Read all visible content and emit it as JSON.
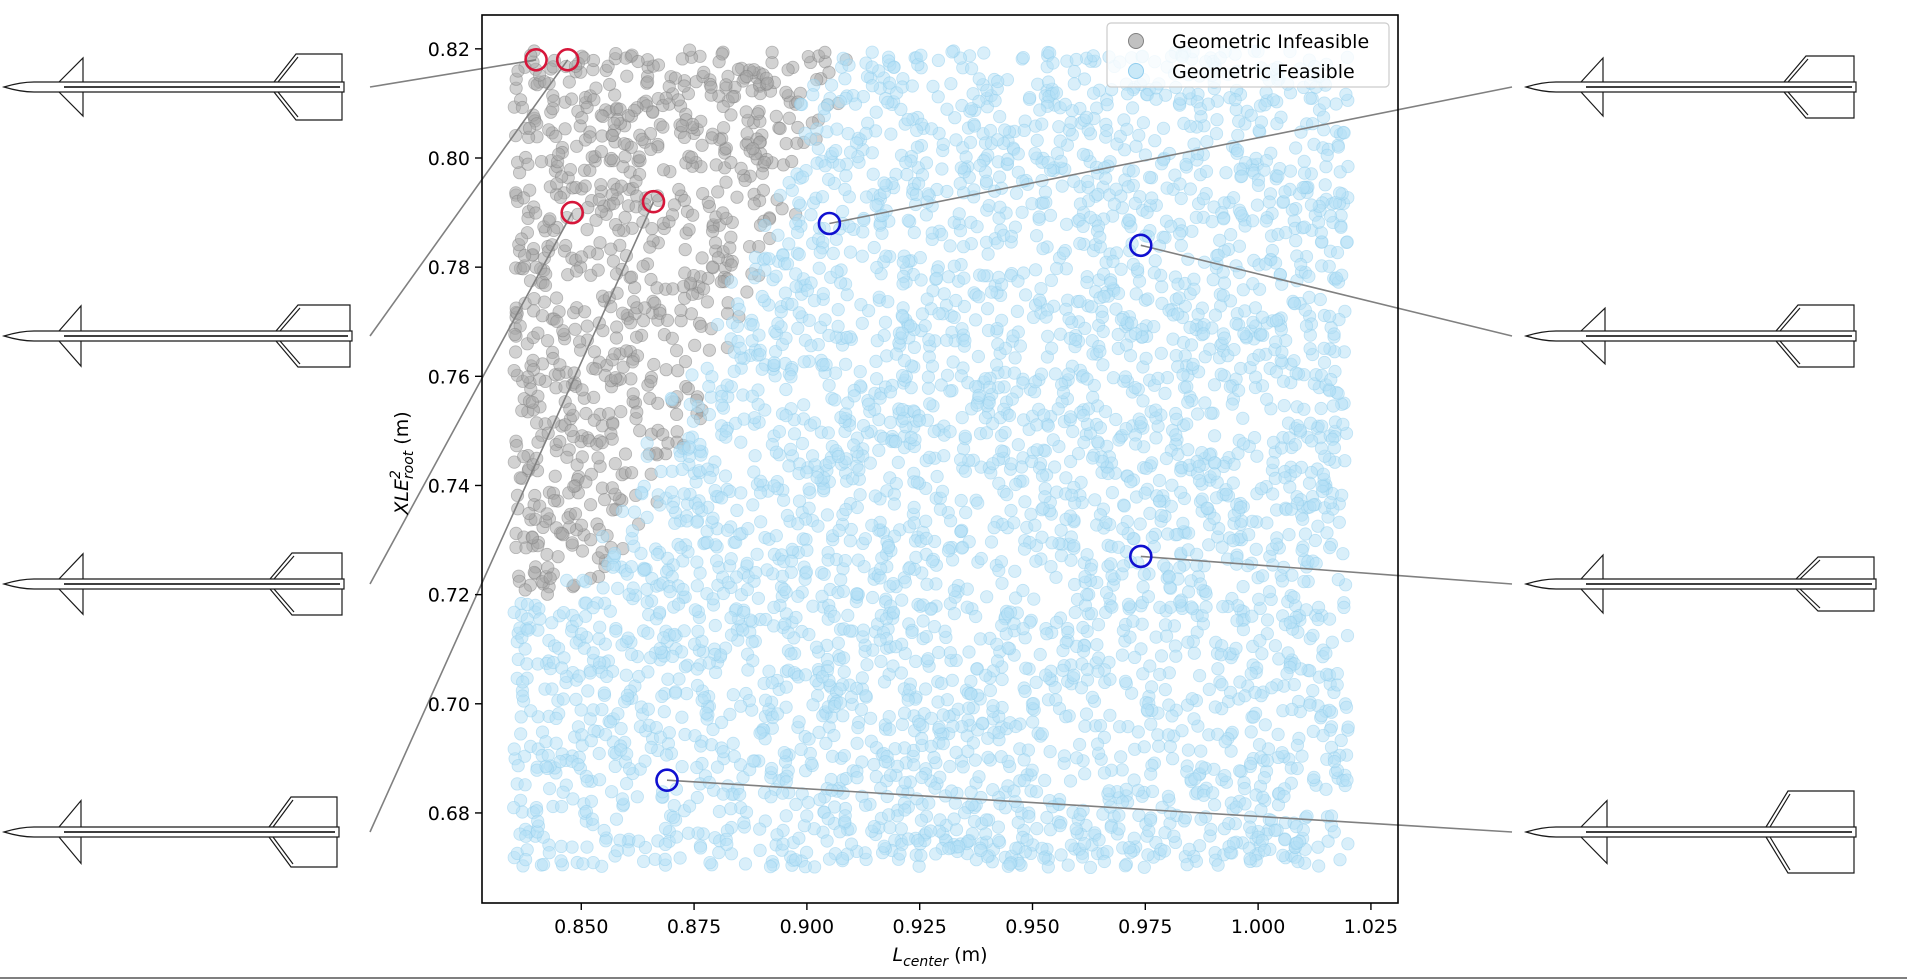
{
  "chart_data": {
    "type": "scatter",
    "xlabel": {
      "main": "L",
      "sub": "center",
      "unit": " (m)"
    },
    "ylabel": {
      "main": "XLE",
      "sup": "2",
      "sub": "root",
      "unit": " (m)"
    },
    "xlim": [
      0.828,
      1.031
    ],
    "ylim": [
      0.6635,
      0.8262
    ],
    "x_ticks": [
      0.85,
      0.875,
      0.9,
      0.925,
      0.95,
      0.975,
      1.0,
      1.025
    ],
    "x_tick_labels": [
      "0.850",
      "0.875",
      "0.900",
      "0.925",
      "0.950",
      "0.975",
      "1.000",
      "1.025"
    ],
    "y_ticks": [
      0.68,
      0.7,
      0.72,
      0.74,
      0.76,
      0.78,
      0.8,
      0.82
    ],
    "y_tick_labels": [
      "0.68",
      "0.70",
      "0.72",
      "0.74",
      "0.76",
      "0.78",
      "0.80",
      "0.82"
    ],
    "grid": false,
    "legend_position": "top-right",
    "series": [
      {
        "name": "Geometric Infeasible",
        "color": "#a6a6a6",
        "edge_color": "#808080",
        "opacity": 0.5,
        "approx_count": 600,
        "region": "upper-left corner: x roughly 0.835–0.905, y roughly 0.72–0.82 (density decreasing toward lower-right boundary)"
      },
      {
        "name": "Geometric Feasible",
        "color": "#b3dff5",
        "edge_color": "#8fcdee",
        "opacity": 0.5,
        "approx_count": 4000,
        "region": "remaining area of x 0.835–1.02, y 0.67–0.82"
      }
    ],
    "highlighted_points": [
      {
        "group": "infeasible",
        "color": "#d6163a",
        "x": 0.84,
        "y": 0.818
      },
      {
        "group": "infeasible",
        "color": "#d6163a",
        "x": 0.847,
        "y": 0.818
      },
      {
        "group": "infeasible",
        "color": "#d6163a",
        "x": 0.848,
        "y": 0.79
      },
      {
        "group": "infeasible",
        "color": "#d6163a",
        "x": 0.866,
        "y": 0.792
      },
      {
        "group": "feasible",
        "color": "#1010d0",
        "x": 0.905,
        "y": 0.788
      },
      {
        "group": "feasible",
        "color": "#1010d0",
        "x": 0.974,
        "y": 0.784
      },
      {
        "group": "feasible",
        "color": "#1010d0",
        "x": 0.974,
        "y": 0.727
      },
      {
        "group": "feasible",
        "color": "#1010d0",
        "x": 0.869,
        "y": 0.686
      }
    ],
    "rocket_thumbnails": [
      {
        "side": "left",
        "row": 1,
        "callout": 0
      },
      {
        "side": "left",
        "row": 2,
        "callout": 1
      },
      {
        "side": "left",
        "row": 3,
        "callout": 2
      },
      {
        "side": "left",
        "row": 4,
        "callout": 3
      },
      {
        "side": "right",
        "row": 1,
        "callout": 4
      },
      {
        "side": "right",
        "row": 2,
        "callout": 5
      },
      {
        "side": "right",
        "row": 3,
        "callout": 6
      },
      {
        "side": "right",
        "row": 4,
        "callout": 7
      }
    ]
  }
}
